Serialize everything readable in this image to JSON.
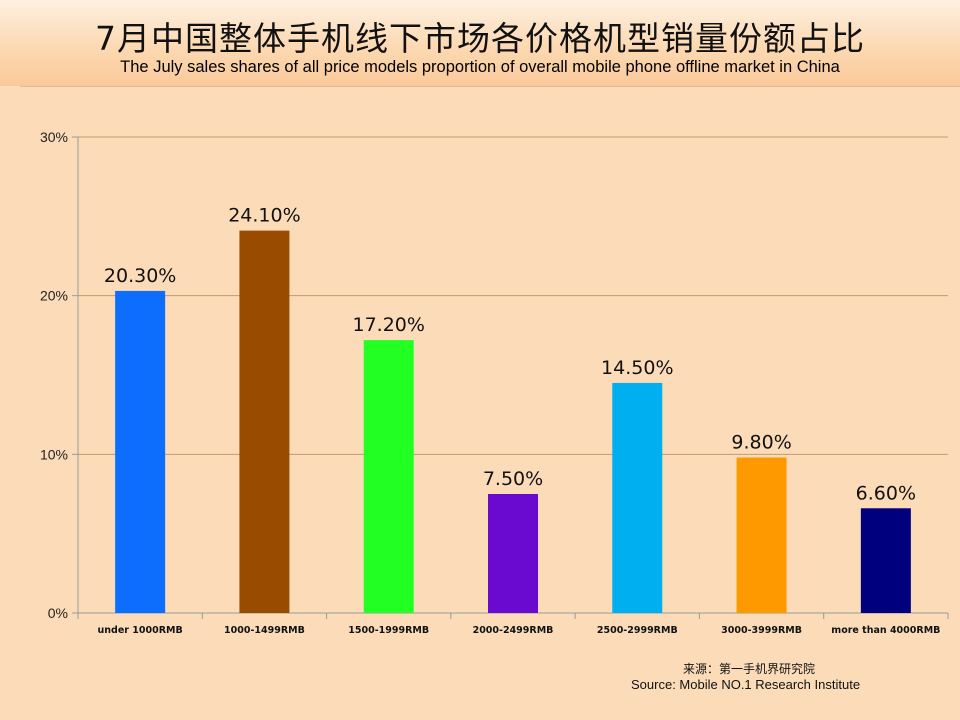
{
  "header": {
    "title_zh": "7月中国整体手机线下市场各价格机型销量份额占比",
    "title_en": "The July sales shares of all price models proportion of overall mobile phone offline market in China"
  },
  "chart_data": {
    "type": "bar",
    "title": "7月中国整体手机线下市场各价格机型销量份额占比",
    "subtitle": "The July sales shares of all price models proportion of overall mobile phone offline market in China",
    "categories": [
      "under 1000RMB",
      "1000-1499RMB",
      "1500-1999RMB",
      "2000-2499RMB",
      "2500-2999RMB",
      "3000-3999RMB",
      "more than 4000RMB"
    ],
    "values": [
      20.3,
      24.1,
      17.2,
      7.5,
      14.5,
      9.8,
      6.6
    ],
    "data_labels": [
      "20.30%",
      "24.10%",
      "17.20%",
      "7.50%",
      "14.50%",
      "9.80%",
      "6.60%"
    ],
    "bar_colors": [
      "#0d6efd",
      "#994c00",
      "#22ff22",
      "#6a0ad0",
      "#00aff0",
      "#ff9900",
      "#00007f"
    ],
    "ylim": [
      0,
      30
    ],
    "yticks": [
      0,
      10,
      20,
      30
    ],
    "ytick_labels": [
      "0%",
      "10%",
      "20%",
      "30%"
    ],
    "xlabel": "",
    "ylabel": "",
    "grid": true,
    "legend": "none"
  },
  "source": {
    "zh": "来源：第一手机界研究院",
    "en": "Source: Mobile NO.1 Research Institute"
  }
}
